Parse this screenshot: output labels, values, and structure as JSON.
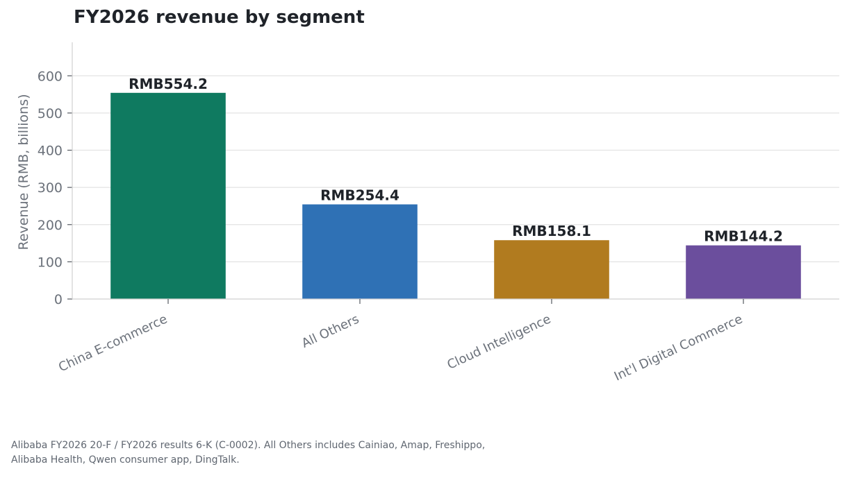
{
  "chart_data": {
    "type": "bar",
    "title": "FY2026 revenue by segment",
    "xlabel": "",
    "ylabel": "Revenue (RMB, billions)",
    "ylim": [
      0,
      690
    ],
    "yticks": [
      0,
      100,
      200,
      300,
      400,
      500,
      600
    ],
    "grid": true,
    "categories": [
      "China E-commerce",
      "All Others",
      "Cloud Intelligence",
      "Int'l Digital Commerce"
    ],
    "values": [
      554.2,
      254.4,
      158.1,
      144.2
    ],
    "value_labels": [
      "RMB554.2",
      "RMB254.4",
      "RMB158.1",
      "RMB144.2"
    ],
    "colors": [
      "#0f7a60",
      "#2f71b5",
      "#b17b1f",
      "#6b4e9d"
    ]
  },
  "source_note": {
    "line1": "Alibaba FY2026 20-F / FY2026 results 6-K (C-0002). All Others includes Cainiao, Amap, Freshippo,",
    "line2": "Alibaba Health, Qwen consumer app, DingTalk."
  }
}
